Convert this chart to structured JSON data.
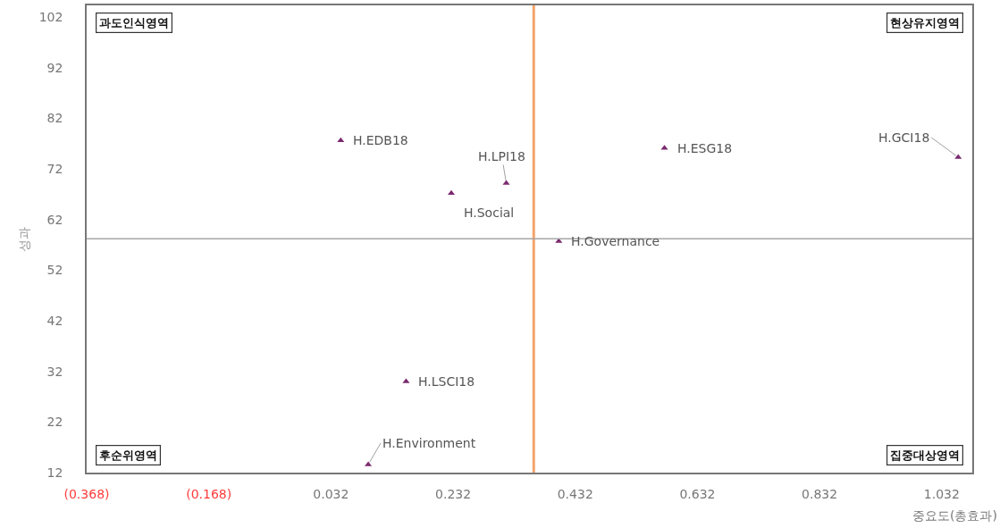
{
  "chart_data": {
    "type": "scatter",
    "xlabel": "중요도(총효과)",
    "ylabel": "성과",
    "x": [
      0.048,
      0.229,
      0.319,
      0.578,
      1.059,
      0.405,
      0.155,
      0.093
    ],
    "series": [
      {
        "color": "#7b2a6e",
        "values": [
          77.6,
          67.2,
          69.2,
          76.1,
          74.3,
          57.7,
          30.0,
          13.6
        ]
      }
    ],
    "annotations": [
      "과도인식영역",
      "현상유지영역",
      "후순위영역",
      "집중대상영역",
      {
        "text": "H.EDB18",
        "x": 0.048,
        "y": 77.6
      },
      {
        "text": "H.Social",
        "x": 0.229,
        "y": 67.2
      },
      {
        "text": "H.LPI18",
        "x": 0.319,
        "y": 69.2
      },
      {
        "text": "H.ESG18",
        "x": 0.578,
        "y": 76.1
      },
      {
        "text": "H.GCI18",
        "x": 1.059,
        "y": 74.3
      },
      {
        "text": "H.Governance",
        "x": 0.405,
        "y": 57.7
      },
      {
        "text": "H.LSCI18",
        "x": 0.155,
        "y": 30.0
      },
      {
        "text": "H.Environment",
        "x": 0.093,
        "y": 13.6
      }
    ],
    "ref_lines": [
      {
        "axis": "x",
        "value": 0.364,
        "color": "#f4a46a"
      },
      {
        "axis": "y",
        "value": 58.2,
        "color": "#a6a6a6"
      }
    ],
    "xlim": [
      -0.368,
      1.082
    ],
    "ylim": [
      12,
      104.3
    ],
    "xticks": [
      {
        "value": -0.368,
        "label": "(0.368)"
      },
      {
        "value": -0.168,
        "label": "(0.168)"
      },
      0.032,
      0.232,
      0.432,
      0.632,
      0.832,
      1.032
    ],
    "yticks": [
      12,
      22,
      32,
      42,
      52,
      62,
      72,
      82,
      92,
      102
    ],
    "marker": "triangle"
  }
}
